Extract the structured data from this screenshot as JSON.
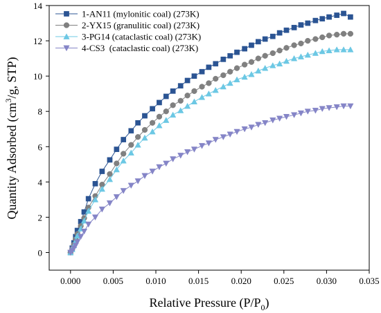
{
  "chart_data": {
    "type": "line",
    "title": "",
    "xlabel": "Relative Pressure (P/P",
    "xlabel_sub": "0",
    "xlabel_end": ")",
    "ylabel_pre": "Quantity Adsorbed (cm",
    "ylabel_sup": "3",
    "ylabel_post": "/g, STP)",
    "xlim": [
      -0.0025,
      0.035
    ],
    "ylim": [
      -1,
      14
    ],
    "xticks": [
      "0.000",
      "0.005",
      "0.010",
      "0.015",
      "0.020",
      "0.025",
      "0.030",
      "0.035"
    ],
    "xtick_values": [
      0,
      0.005,
      0.01,
      0.015,
      0.02,
      0.025,
      0.03,
      0.035
    ],
    "yticks": [
      "0",
      "2",
      "4",
      "6",
      "8",
      "10",
      "12",
      "14"
    ],
    "ytick_values": [
      0,
      2,
      4,
      6,
      8,
      10,
      12,
      14
    ],
    "grid": false,
    "legend_position": "top-left",
    "x": [
      0.0,
      0.0002,
      0.0004,
      0.0006,
      0.0008,
      0.0012,
      0.0016,
      0.0021,
      0.0029,
      0.0037,
      0.0046,
      0.0054,
      0.0062,
      0.0071,
      0.0079,
      0.0087,
      0.0096,
      0.0104,
      0.0112,
      0.012,
      0.0129,
      0.0137,
      0.0145,
      0.0154,
      0.0162,
      0.017,
      0.0179,
      0.0187,
      0.0195,
      0.0204,
      0.0212,
      0.022,
      0.0228,
      0.0237,
      0.0245,
      0.0253,
      0.0262,
      0.027,
      0.0278,
      0.0287,
      0.0295,
      0.0303,
      0.0312,
      0.032,
      0.0328
    ],
    "series": [
      {
        "name": "1-AN11 (mylonitic coal) (273K)",
        "color": "#2b5493",
        "marker": "square",
        "values": [
          0.0,
          0.25,
          0.55,
          0.9,
          1.25,
          1.75,
          2.3,
          3.05,
          3.9,
          4.6,
          5.25,
          5.85,
          6.4,
          6.9,
          7.35,
          7.75,
          8.15,
          8.5,
          8.85,
          9.15,
          9.45,
          9.75,
          10.0,
          10.25,
          10.5,
          10.7,
          10.95,
          11.15,
          11.35,
          11.55,
          11.75,
          11.95,
          12.1,
          12.25,
          12.45,
          12.6,
          12.75,
          12.9,
          13.0,
          13.15,
          13.25,
          13.35,
          13.45,
          13.55,
          13.35
        ]
      },
      {
        "name": "2-YX15 (granulitic coal) (273K)",
        "color": "#808080",
        "marker": "circle",
        "values": [
          0.0,
          0.2,
          0.45,
          0.75,
          1.05,
          1.5,
          1.95,
          2.55,
          3.2,
          3.85,
          4.45,
          5.05,
          5.6,
          6.1,
          6.55,
          6.95,
          7.35,
          7.7,
          8.0,
          8.35,
          8.6,
          8.9,
          9.15,
          9.4,
          9.6,
          9.85,
          10.05,
          10.25,
          10.45,
          10.65,
          10.8,
          11.0,
          11.15,
          11.3,
          11.45,
          11.6,
          11.75,
          11.85,
          12.0,
          12.1,
          12.2,
          12.3,
          12.35,
          12.4,
          12.4
        ]
      },
      {
        "name": "3-PG14 (cataclastic coal) (273K)",
        "color": "#6cc8e4",
        "marker": "triangle-up",
        "values": [
          0.0,
          0.18,
          0.4,
          0.65,
          0.95,
          1.35,
          1.8,
          2.35,
          3.0,
          3.6,
          4.15,
          4.7,
          5.2,
          5.65,
          6.1,
          6.5,
          6.85,
          7.2,
          7.5,
          7.8,
          8.05,
          8.3,
          8.55,
          8.8,
          9.0,
          9.2,
          9.4,
          9.6,
          9.8,
          9.95,
          10.1,
          10.3,
          10.45,
          10.6,
          10.7,
          10.85,
          11.0,
          11.1,
          11.2,
          11.3,
          11.4,
          11.45,
          11.5,
          11.5,
          11.5
        ]
      },
      {
        "name": "4-CS3  (cataclastic coal) (273K)",
        "color": "#8585c7",
        "marker": "triangle-down",
        "values": [
          0.0,
          0.1,
          0.25,
          0.4,
          0.6,
          0.9,
          1.2,
          1.6,
          2.0,
          2.45,
          2.8,
          3.15,
          3.5,
          3.8,
          4.05,
          4.35,
          4.6,
          4.85,
          5.05,
          5.3,
          5.5,
          5.7,
          5.85,
          6.05,
          6.2,
          6.4,
          6.55,
          6.7,
          6.85,
          7.0,
          7.1,
          7.25,
          7.35,
          7.5,
          7.6,
          7.7,
          7.8,
          7.9,
          8.0,
          8.05,
          8.15,
          8.2,
          8.25,
          8.3,
          8.3
        ]
      }
    ]
  }
}
